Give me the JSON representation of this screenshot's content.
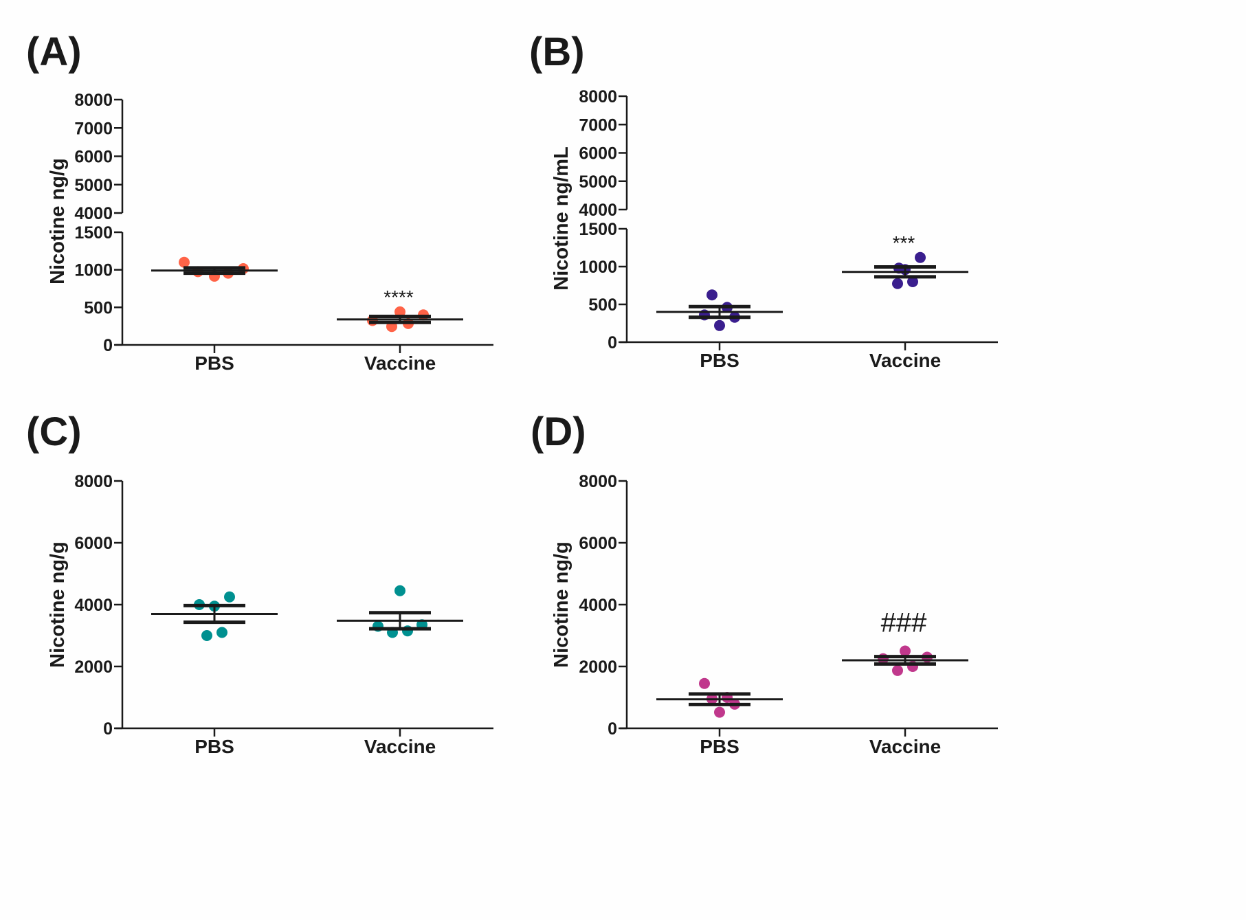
{
  "chart_data": [
    {
      "type": "scatter",
      "panel": "(A)",
      "ylabel": "Nicotine ng/g",
      "broken_axis": true,
      "y_lower_ticks": [
        "0",
        "500",
        "1000",
        "1500"
      ],
      "y_upper_ticks": [
        "4000",
        "5000",
        "6000",
        "7000",
        "8000"
      ],
      "ylim_lower": [
        0,
        1500
      ],
      "ylim_upper": [
        4000,
        8000
      ],
      "categories": [
        "PBS",
        "Vaccine"
      ],
      "points": [
        [
          1100,
          975,
          915,
          955,
          1015
        ],
        [
          325,
          245,
          440,
          285,
          400
        ]
      ],
      "mean": [
        990,
        340
      ],
      "sem": [
        35,
        40
      ],
      "color": "#ff6347",
      "annotations": [
        "",
        "****"
      ]
    },
    {
      "type": "scatter",
      "panel": "(B)",
      "ylabel": "Nicotine ng/mL",
      "broken_axis": true,
      "y_lower_ticks": [
        "0",
        "500",
        "1000",
        "1500"
      ],
      "y_upper_ticks": [
        "4000",
        "5000",
        "6000",
        "7000",
        "8000"
      ],
      "ylim_lower": [
        0,
        1500
      ],
      "ylim_upper": [
        4000,
        8000
      ],
      "categories": [
        "PBS",
        "Vaccine"
      ],
      "points": [
        [
          360,
          625,
          220,
          460,
          330
        ],
        [
          980,
          775,
          960,
          800,
          1120
        ]
      ],
      "mean": [
        400,
        930
      ],
      "sem": [
        70,
        65
      ],
      "color": "#3a1e8e",
      "annotations": [
        "",
        "***"
      ]
    },
    {
      "type": "scatter",
      "panel": "(C)",
      "ylabel": "Nicotine ng/g",
      "broken_axis": false,
      "y_ticks": [
        "0",
        "2000",
        "4000",
        "6000",
        "8000"
      ],
      "ylim": [
        0,
        8000
      ],
      "categories": [
        "PBS",
        "Vaccine"
      ],
      "points": [
        [
          4000,
          3000,
          3950,
          3100,
          4250
        ],
        [
          3300,
          3100,
          4450,
          3150,
          3350
        ]
      ],
      "mean": [
        3700,
        3480
      ],
      "sem": [
        270,
        260
      ],
      "color": "#009090",
      "annotations": [
        "",
        ""
      ]
    },
    {
      "type": "scatter",
      "panel": "(D)",
      "ylabel": "Nicotine ng/g",
      "broken_axis": false,
      "y_ticks": [
        "0",
        "2000",
        "4000",
        "6000",
        "8000"
      ],
      "ylim": [
        0,
        8000
      ],
      "categories": [
        "PBS",
        "Vaccine"
      ],
      "points": [
        [
          1450,
          950,
          520,
          1000,
          780
        ],
        [
          2250,
          1870,
          2500,
          2000,
          2300
        ]
      ],
      "mean": [
        940,
        2200
      ],
      "sem": [
        170,
        120
      ],
      "color": "#c0388c",
      "annotations": [
        "",
        "###"
      ]
    }
  ]
}
